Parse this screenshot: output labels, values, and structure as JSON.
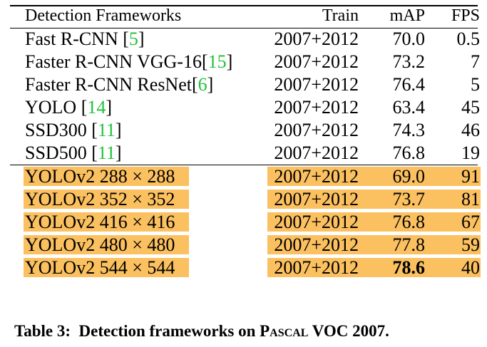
{
  "table": {
    "headers": [
      "Detection Frameworks",
      "Train",
      "mAP",
      "FPS"
    ],
    "baseline_rows": [
      {
        "name": "Fast R-CNN ",
        "ref": "5",
        "train": "2007+2012",
        "map": "70.0",
        "fps": "0.5"
      },
      {
        "name": "Faster R-CNN VGG-16",
        "ref": "15",
        "train": "2007+2012",
        "map": "73.2",
        "fps": "7"
      },
      {
        "name": "Faster R-CNN ResNet",
        "ref": "6",
        "train": "2007+2012",
        "map": "76.4",
        "fps": "5"
      },
      {
        "name": "YOLO ",
        "ref": "14",
        "train": "2007+2012",
        "map": "63.4",
        "fps": "45"
      },
      {
        "name": "SSD300 ",
        "ref": "11",
        "train": "2007+2012",
        "map": "74.3",
        "fps": "46"
      },
      {
        "name": "SSD500 ",
        "ref": "11",
        "train": "2007+2012",
        "map": "76.8",
        "fps": "19"
      }
    ],
    "yolov2_rows": [
      {
        "name": "YOLOv2 288 × 288",
        "train": "2007+2012",
        "map": "69.0",
        "fps": "91",
        "best": false
      },
      {
        "name": "YOLOv2 352 × 352",
        "train": "2007+2012",
        "map": "73.7",
        "fps": "81",
        "best": false
      },
      {
        "name": "YOLOv2 416 × 416",
        "train": "2007+2012",
        "map": "76.8",
        "fps": "67",
        "best": false
      },
      {
        "name": "YOLOv2 480 × 480",
        "train": "2007+2012",
        "map": "77.8",
        "fps": "59",
        "best": false
      },
      {
        "name": "YOLOv2 544 × 544",
        "train": "2007+2012",
        "map": "78.6",
        "fps": "40",
        "best": true
      }
    ]
  },
  "caption": {
    "label": "Table 3:",
    "text_before": "Detection frameworks on ",
    "dataset": "Pascal",
    "text_after": " VOC 2007."
  },
  "colors": {
    "highlight": "#fbc060",
    "citation": "#22c23a"
  }
}
